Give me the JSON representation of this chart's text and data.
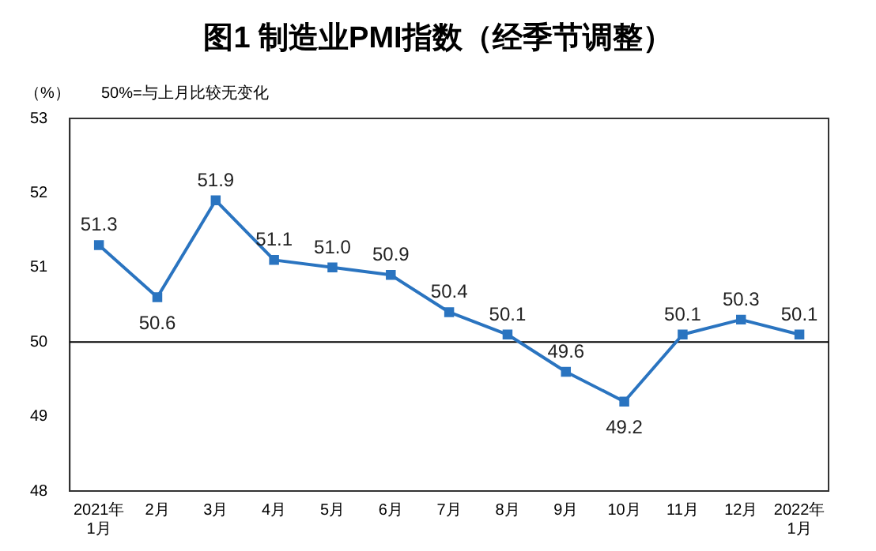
{
  "chart_data": {
    "type": "line",
    "title": "图1 制造业PMI指数（经季节调整）",
    "ylabel": "（%）",
    "annotations": [
      "50%=与上月比较无变化"
    ],
    "categories": [
      "2021年\n1月",
      "2月",
      "3月",
      "4月",
      "5月",
      "6月",
      "7月",
      "8月",
      "9月",
      "10月",
      "11月",
      "12月",
      "2022年\n1月"
    ],
    "series": [
      {
        "color": "#2a74c0",
        "values": [
          51.3,
          50.6,
          51.9,
          51.1,
          51.0,
          50.9,
          50.4,
          50.1,
          49.6,
          49.2,
          50.1,
          50.3,
          50.1
        ],
        "value_labels": [
          "51.3",
          "50.6",
          "51.9",
          "51.1",
          "51.0",
          "50.9",
          "50.4",
          "50.1",
          "49.6",
          "49.2",
          "50.1",
          "50.3",
          "50.1"
        ]
      }
    ],
    "ylim": [
      48,
      53
    ],
    "yticks": [
      48,
      49,
      50,
      51,
      52,
      53
    ],
    "ref_lines": [
      {
        "axis": "y",
        "value": 50,
        "color": "#000000"
      }
    ],
    "marker": "square",
    "line_style": "solid",
    "grid": false,
    "legend": false
  }
}
